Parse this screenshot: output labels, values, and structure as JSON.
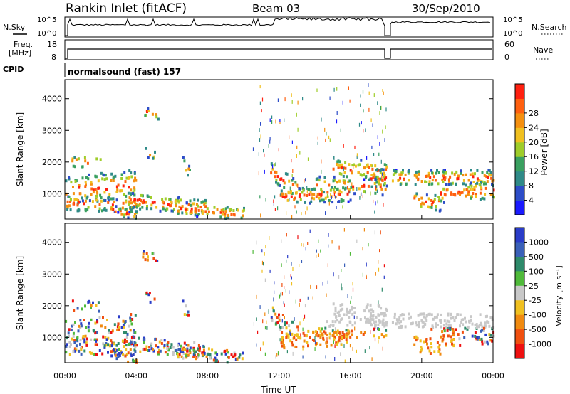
{
  "header": {
    "station": "Rankin Inlet (fitACF)",
    "beam": "Beam 03",
    "date": "30/Sep/2010"
  },
  "strips": {
    "sky_label": "N.Sky",
    "search_label": "N.Search",
    "freq_label_1": "Freq.",
    "freq_label_2": "[MHz]",
    "nave_label": "Nave",
    "cpid_label": "CPID",
    "cpid_text": "normalsound (fast) 157",
    "sky_ticks": [
      "10^5",
      "10^0"
    ],
    "search_ticks": [
      "10^5",
      "10^0"
    ],
    "freq_ticks": [
      "18",
      "8"
    ],
    "nave_ticks": [
      "60",
      "0"
    ]
  },
  "chart_data": [
    {
      "type": "heatmap",
      "title": "",
      "xlabel": "Time UT",
      "ylabel": "Slant Range [km]",
      "x_ticks": [
        "00:00",
        "04:00",
        "08:00",
        "12:00",
        "16:00",
        "20:00",
        "00:00"
      ],
      "y_ticks": [
        1000,
        2000,
        3000,
        4000
      ],
      "ylim": [
        200,
        4600
      ],
      "colorbar_label": "Power [dB]",
      "colorbar_ticks": [
        "4",
        "8",
        "12",
        "16",
        "20",
        "24",
        "28"
      ],
      "colors": [
        "#1a1aff",
        "#2d4dc8",
        "#2f8a88",
        "#3aa060",
        "#9fcd2a",
        "#f0c020",
        "#f59010",
        "#ff6010",
        "#ff2010"
      ]
    },
    {
      "type": "heatmap",
      "title": "",
      "xlabel": "Time UT",
      "ylabel": "Slant Range [km]",
      "x_ticks": [
        "00:00",
        "04:00",
        "08:00",
        "12:00",
        "16:00",
        "20:00",
        "00:00"
      ],
      "y_ticks": [
        1000,
        2000,
        3000,
        4000
      ],
      "ylim": [
        200,
        4600
      ],
      "colorbar_label": "Velocity [m s⁻¹]",
      "colorbar_ticks": [
        "1000",
        "500",
        "100",
        "25",
        "-25",
        "-100",
        "-500",
        "-1000"
      ],
      "colors": [
        "#2a3cc8",
        "#3a60b8",
        "#2e8a6a",
        "#4fba3a",
        "#c8c8c8",
        "#f0c020",
        "#f08a10",
        "#f05010",
        "#ee1010"
      ]
    }
  ]
}
